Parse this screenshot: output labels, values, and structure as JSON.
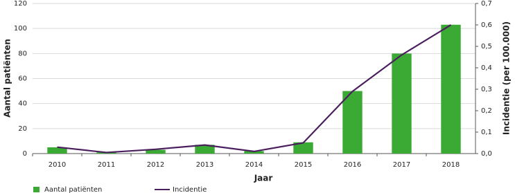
{
  "chart_data": {
    "type": "bar_line",
    "x_label": "Jaar",
    "y_label": "Aantal patiënten",
    "y2_label": "Incidentie (per 100.000)",
    "categories": [
      "2010",
      "2011",
      "2012",
      "2013",
      "2014",
      "2015",
      "2016",
      "2017",
      "2018"
    ],
    "series": [
      {
        "name": "Aantal patiënten",
        "type": "bar",
        "color": "#3aaa35",
        "values": [
          5,
          1,
          3,
          7,
          2,
          9,
          50,
          80,
          103
        ]
      },
      {
        "name": "Incidentie",
        "type": "line",
        "axis": "y2",
        "color": "#4b1f5e",
        "values": [
          0.03,
          0.005,
          0.02,
          0.04,
          0.01,
          0.05,
          0.29,
          0.46,
          0.6
        ]
      }
    ],
    "ylim": [
      0,
      120
    ],
    "yticks": [
      0,
      20,
      40,
      60,
      80,
      100,
      120
    ],
    "y2lim": [
      0,
      0.7
    ],
    "y2ticks": [
      {
        "value": 0,
        "label": "0,0"
      },
      {
        "value": 0.1,
        "label": "0,1"
      },
      {
        "value": 0.2,
        "label": "0,2"
      },
      {
        "value": 0.3,
        "label": "0,3"
      },
      {
        "value": 0.4,
        "label": "0,4"
      },
      {
        "value": 0.5,
        "label": "0,5"
      },
      {
        "value": 0.6,
        "label": "0,6"
      },
      {
        "value": 0.7,
        "label": "0,7"
      }
    ],
    "grid": true
  }
}
